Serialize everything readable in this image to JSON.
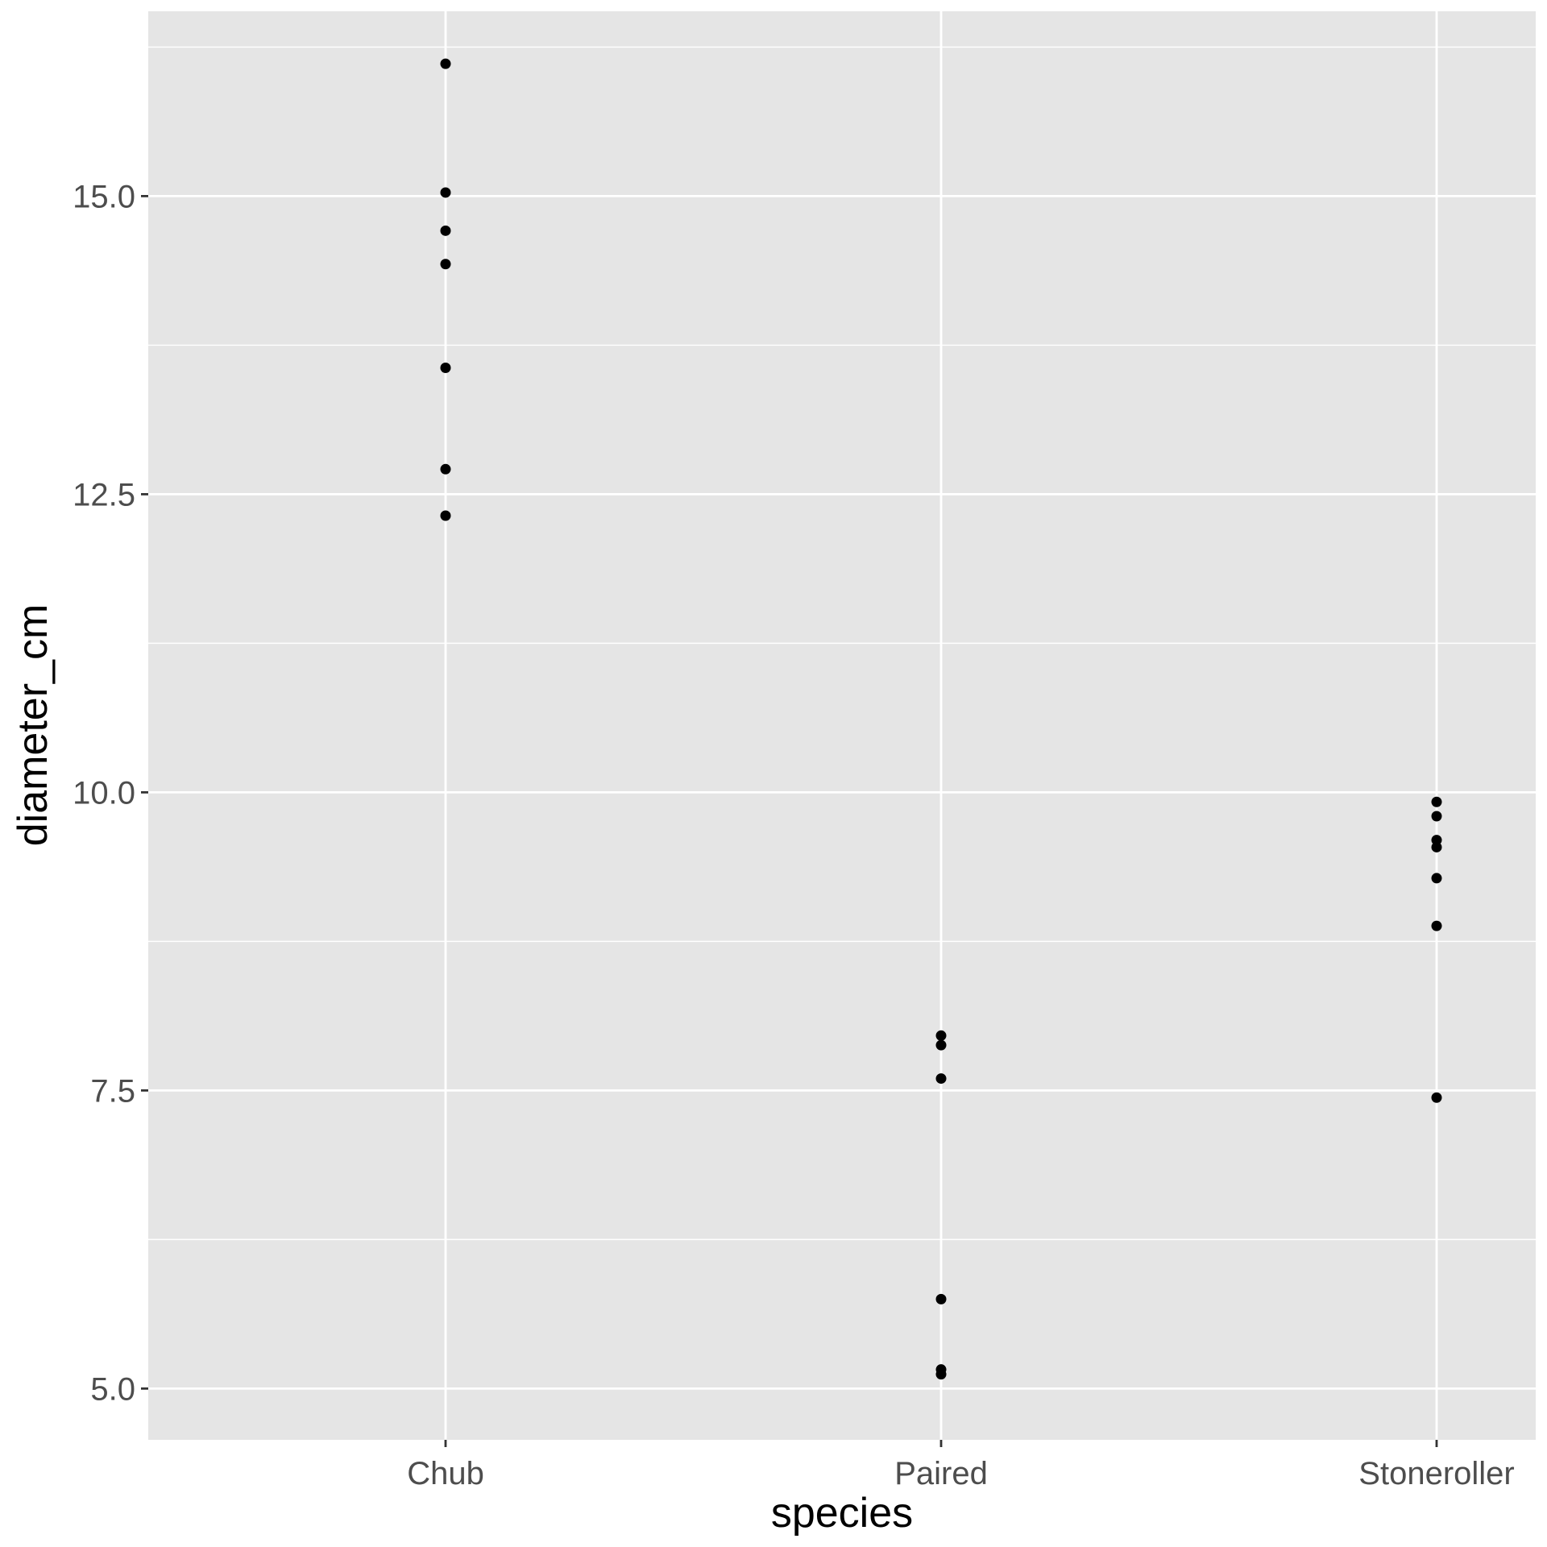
{
  "chart_data": {
    "type": "scatter",
    "xlabel": "species",
    "ylabel": "diameter_cm",
    "categories": [
      "Chub",
      "Paired",
      "Stoneroller"
    ],
    "ylim": [
      4.57,
      16.55
    ],
    "y_ticks": [
      "5.0",
      "7.5",
      "10.0",
      "12.5",
      "15.0"
    ],
    "grid": true,
    "background": "#e5e5e5",
    "grid_color": "#ffffff",
    "point_color": "#000000",
    "points": [
      {
        "category": "Chub",
        "values": [
          16.11,
          15.03,
          14.71,
          14.43,
          13.56,
          12.71,
          12.32
        ]
      },
      {
        "category": "Paired",
        "values": [
          7.96,
          7.88,
          7.6,
          5.75,
          5.16,
          5.12
        ]
      },
      {
        "category": "Stoneroller",
        "values": [
          9.92,
          9.8,
          9.6,
          9.54,
          9.28,
          8.88,
          7.44
        ]
      }
    ]
  }
}
